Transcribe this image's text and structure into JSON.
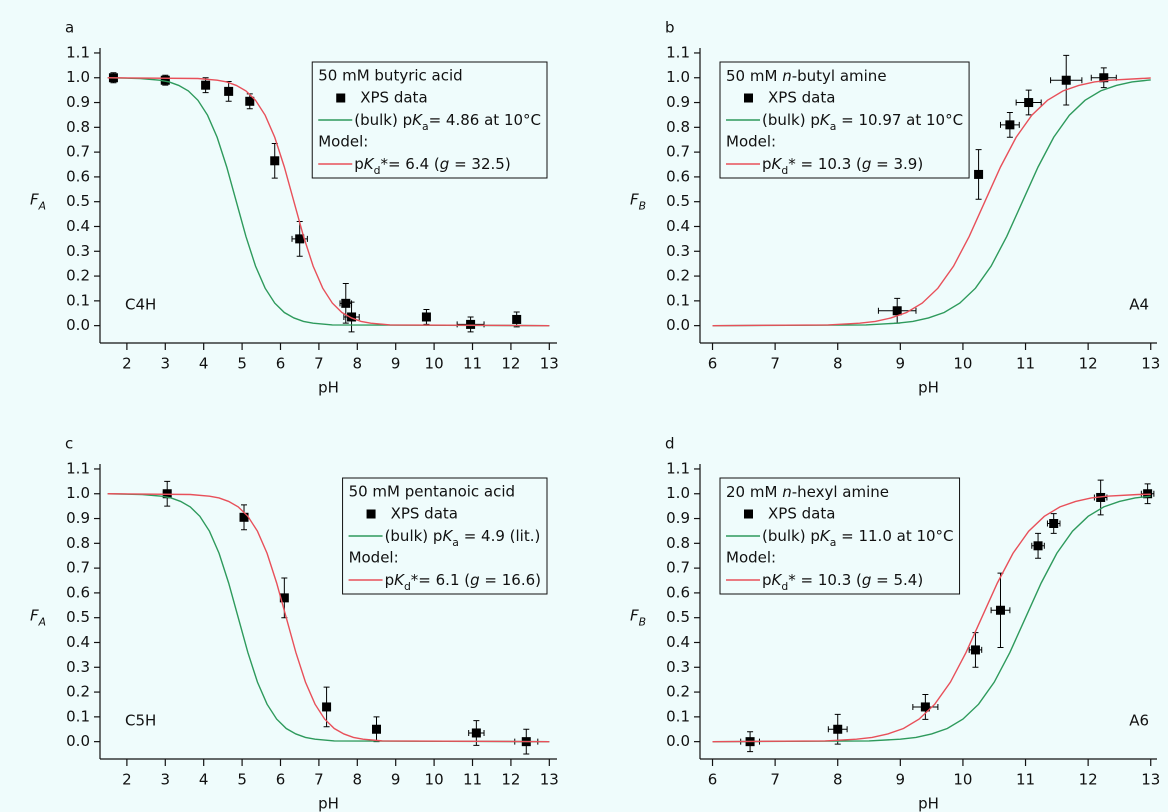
{
  "chart_data": [
    {
      "type": "line",
      "panel_label": "a",
      "annotation": "C4H",
      "x_label": "pH",
      "y_label": [
        {
          "text": "F",
          "style": "italic"
        },
        {
          "text": "A",
          "style": "italic sub"
        }
      ],
      "xlim": [
        1.3,
        13.2
      ],
      "ylim": [
        -0.07,
        1.12
      ],
      "xticks": [
        2,
        3,
        4,
        5,
        6,
        7,
        8,
        9,
        10,
        11,
        12,
        13
      ],
      "yticks": [
        {
          "value": 0,
          "label": "0.0"
        },
        0.1,
        0.2,
        0.3,
        0.4,
        0.5,
        0.6,
        0.7,
        0.8,
        0.9,
        {
          "value": 1,
          "label": "1.0"
        },
        1.1
      ],
      "legend": "upper right",
      "legend_title": "50 mM butyric acid",
      "model_label": "Model:",
      "series": [
        {
          "name": "XPS data",
          "color": "#000000",
          "marker": "square",
          "x": [
            1.65,
            3.0,
            4.05,
            4.65,
            5.2,
            5.85,
            6.5,
            7.7,
            7.85,
            9.8,
            10.95,
            12.15
          ],
          "values": [
            1.0,
            0.99,
            0.97,
            0.945,
            0.905,
            0.665,
            0.35,
            0.09,
            0.035,
            0.035,
            0.005,
            0.025
          ],
          "xerr": [
            0.05,
            0.1,
            0.05,
            0.05,
            0.05,
            0.05,
            0.2,
            0.15,
            0.2,
            0.05,
            0.35,
            0.05
          ],
          "yerr": [
            0.02,
            0.02,
            0.03,
            0.04,
            0.03,
            0.07,
            0.07,
            0.08,
            0.06,
            0.03,
            0.03,
            0.03
          ]
        },
        {
          "name": [
            {
              "text": "(bulk) p"
            },
            {
              "text": "K",
              "style": "italic"
            },
            {
              "text": "a",
              "style": "sub"
            },
            {
              "text": "= 4.86 at 10°C"
            }
          ],
          "color": "#2e9a5c",
          "x": [
            1.5,
            2.35,
            2.85,
            3.1,
            3.35,
            3.6,
            3.85,
            4.1,
            4.35,
            4.6,
            4.85,
            5.1,
            5.35,
            5.6,
            5.85,
            6.1,
            6.35,
            6.6,
            6.85,
            7.35,
            13
          ],
          "values": [
            1,
            0.997,
            0.99,
            0.983,
            0.969,
            0.947,
            0.909,
            0.849,
            0.76,
            0.64,
            0.5,
            0.36,
            0.24,
            0.151,
            0.091,
            0.053,
            0.031,
            0.017,
            0.01,
            0.003,
            0
          ]
        },
        {
          "name": [
            {
              "text": "p"
            },
            {
              "text": "K",
              "style": "italic"
            },
            {
              "text": "d",
              "style": "sub"
            },
            {
              "text": "*= 6.4 ("
            },
            {
              "text": "g",
              "style": "italic"
            },
            {
              "text": " = 32.5)"
            }
          ],
          "color": "#e8505a",
          "x": [
            1.5,
            3.85,
            4.35,
            4.6,
            4.85,
            5.1,
            5.35,
            5.6,
            5.85,
            6.1,
            6.35,
            6.6,
            6.85,
            7.1,
            7.35,
            7.6,
            7.85,
            8.1,
            8.35,
            8.85,
            13
          ],
          "values": [
            1,
            0.997,
            0.99,
            0.983,
            0.969,
            0.947,
            0.909,
            0.849,
            0.76,
            0.64,
            0.5,
            0.36,
            0.24,
            0.151,
            0.091,
            0.053,
            0.031,
            0.017,
            0.01,
            0.003,
            0
          ]
        }
      ]
    },
    {
      "type": "line",
      "panel_label": "b",
      "annotation": "A4",
      "x_label": "pH",
      "y_label": [
        {
          "text": "F",
          "style": "italic"
        },
        {
          "text": "B",
          "style": "italic sub"
        }
      ],
      "xlim": [
        5.8,
        13.1
      ],
      "ylim": [
        -0.07,
        1.12
      ],
      "xticks": [
        6,
        7,
        8,
        9,
        10,
        11,
        12,
        13
      ],
      "yticks": [
        {
          "value": 0,
          "label": "0.0"
        },
        0.1,
        0.2,
        0.3,
        0.4,
        0.5,
        0.6,
        0.7,
        0.8,
        0.9,
        {
          "value": 1,
          "label": "1.0"
        },
        1.1
      ],
      "legend": "upper left",
      "legend_title": [
        {
          "text": "50 mM "
        },
        {
          "text": "n",
          "style": "italic"
        },
        {
          "text": "-butyl amine"
        }
      ],
      "model_label": "Model:",
      "series": [
        {
          "name": "XPS data",
          "color": "#000000",
          "marker": "square",
          "x": [
            8.95,
            10.25,
            10.75,
            11.05,
            11.65,
            12.25
          ],
          "values": [
            0.06,
            0.61,
            0.81,
            0.9,
            0.99,
            1.0
          ],
          "xerr": [
            0.3,
            0.05,
            0.15,
            0.2,
            0.25,
            0.2
          ],
          "yerr": [
            0.05,
            0.1,
            0.05,
            0.05,
            0.1,
            0.04
          ]
        },
        {
          "name": [
            {
              "text": "(bulk) p"
            },
            {
              "text": "K",
              "style": "italic"
            },
            {
              "text": "a",
              "style": "sub"
            },
            {
              "text": " = 10.97 at 10°C"
            }
          ],
          "color": "#2e9a5c",
          "x": [
            6,
            8.45,
            8.95,
            9.2,
            9.45,
            9.7,
            9.95,
            10.2,
            10.45,
            10.7,
            10.95,
            11.2,
            11.45,
            11.7,
            11.95,
            12.2,
            12.45,
            12.7,
            12.95,
            13
          ],
          "values": [
            0,
            0.003,
            0.01,
            0.017,
            0.031,
            0.053,
            0.091,
            0.151,
            0.24,
            0.36,
            0.5,
            0.64,
            0.76,
            0.849,
            0.909,
            0.947,
            0.969,
            0.983,
            0.99,
            0.991
          ]
        },
        {
          "name": [
            {
              "text": "p"
            },
            {
              "text": "K",
              "style": "italic"
            },
            {
              "text": "d",
              "style": "sub"
            },
            {
              "text": "* = 10.3 ("
            },
            {
              "text": "g",
              "style": "italic"
            },
            {
              "text": " = 3.9)"
            }
          ],
          "color": "#e8505a",
          "x": [
            6,
            7.85,
            8.35,
            8.6,
            8.85,
            9.1,
            9.35,
            9.6,
            9.85,
            10.1,
            10.35,
            10.6,
            10.85,
            11.1,
            11.35,
            11.6,
            11.85,
            12.1,
            12.35,
            12.85,
            13
          ],
          "values": [
            0,
            0.003,
            0.01,
            0.017,
            0.031,
            0.053,
            0.091,
            0.151,
            0.24,
            0.36,
            0.5,
            0.64,
            0.76,
            0.849,
            0.909,
            0.947,
            0.969,
            0.983,
            0.99,
            0.997,
            0.999
          ]
        }
      ]
    },
    {
      "type": "line",
      "panel_label": "c",
      "annotation": "C5H",
      "x_label": "pH",
      "y_label": [
        {
          "text": "F",
          "style": "italic"
        },
        {
          "text": "A",
          "style": "italic sub"
        }
      ],
      "xlim": [
        1.3,
        13.2
      ],
      "ylim": [
        -0.07,
        1.12
      ],
      "xticks": [
        2,
        3,
        4,
        5,
        6,
        7,
        8,
        9,
        10,
        11,
        12,
        13
      ],
      "yticks": [
        {
          "value": 0,
          "label": "0.0"
        },
        0.1,
        0.2,
        0.3,
        0.4,
        0.5,
        0.6,
        0.7,
        0.8,
        0.9,
        {
          "value": 1,
          "label": "1.0"
        },
        1.1
      ],
      "legend": "upper right",
      "legend_title": "50 mM pentanoic acid",
      "model_label": "Model:",
      "series": [
        {
          "name": "XPS data",
          "color": "#000000",
          "marker": "square",
          "x": [
            3.05,
            5.05,
            6.1,
            7.2,
            8.5,
            11.1,
            12.4
          ],
          "values": [
            1.0,
            0.905,
            0.58,
            0.14,
            0.05,
            0.035,
            0.0
          ],
          "xerr": [
            0.1,
            0.1,
            0.05,
            0.05,
            0.05,
            0.2,
            0.3
          ],
          "yerr": [
            0.05,
            0.05,
            0.08,
            0.08,
            0.05,
            0.05,
            0.05
          ]
        },
        {
          "name": [
            {
              "text": "(bulk) p"
            },
            {
              "text": "K",
              "style": "italic"
            },
            {
              "text": "a",
              "style": "sub"
            },
            {
              "text": " = 4.9 (lit.)"
            }
          ],
          "color": "#2e9a5c",
          "x": [
            1.5,
            2.4,
            2.9,
            3.15,
            3.4,
            3.65,
            3.9,
            4.15,
            4.4,
            4.65,
            4.9,
            5.15,
            5.4,
            5.65,
            5.9,
            6.15,
            6.4,
            6.65,
            6.9,
            7.4,
            13
          ],
          "values": [
            1,
            0.997,
            0.99,
            0.983,
            0.969,
            0.947,
            0.909,
            0.849,
            0.76,
            0.64,
            0.5,
            0.36,
            0.24,
            0.151,
            0.091,
            0.053,
            0.031,
            0.017,
            0.01,
            0.003,
            0
          ]
        },
        {
          "name": [
            {
              "text": "p"
            },
            {
              "text": "K",
              "style": "italic"
            },
            {
              "text": "d",
              "style": "sub"
            },
            {
              "text": "*= 6.1 ("
            },
            {
              "text": "g",
              "style": "italic"
            },
            {
              "text": " = 16.6)"
            }
          ],
          "color": "#e8505a",
          "x": [
            1.5,
            3.65,
            4.15,
            4.4,
            4.65,
            4.9,
            5.15,
            5.4,
            5.65,
            5.9,
            6.15,
            6.4,
            6.65,
            6.9,
            7.15,
            7.4,
            7.65,
            7.9,
            8.15,
            8.65,
            13
          ],
          "values": [
            1,
            0.997,
            0.99,
            0.983,
            0.969,
            0.947,
            0.909,
            0.849,
            0.76,
            0.64,
            0.5,
            0.36,
            0.24,
            0.151,
            0.091,
            0.053,
            0.031,
            0.017,
            0.01,
            0.003,
            0
          ]
        }
      ]
    },
    {
      "type": "line",
      "panel_label": "d",
      "annotation": "A6",
      "x_label": "pH",
      "y_label": [
        {
          "text": "F",
          "style": "italic"
        },
        {
          "text": "B",
          "style": "italic sub"
        }
      ],
      "xlim": [
        5.8,
        13.1
      ],
      "ylim": [
        -0.07,
        1.12
      ],
      "xticks": [
        6,
        7,
        8,
        9,
        10,
        11,
        12,
        13
      ],
      "yticks": [
        {
          "value": 0,
          "label": "0.0"
        },
        0.1,
        0.2,
        0.3,
        0.4,
        0.5,
        0.6,
        0.7,
        0.8,
        0.9,
        {
          "value": 1,
          "label": "1.0"
        },
        1.1
      ],
      "legend": "upper left",
      "legend_title": [
        {
          "text": "20 mM "
        },
        {
          "text": "n",
          "style": "italic"
        },
        {
          "text": "-hexyl amine"
        }
      ],
      "model_label": "Model:",
      "series": [
        {
          "name": "XPS data",
          "color": "#000000",
          "marker": "square",
          "x": [
            6.6,
            8.0,
            9.4,
            10.2,
            10.6,
            11.2,
            11.45,
            12.2,
            12.95
          ],
          "values": [
            0.0,
            0.05,
            0.14,
            0.37,
            0.53,
            0.79,
            0.88,
            0.985,
            1.0
          ],
          "xerr": [
            0.15,
            0.15,
            0.2,
            0.1,
            0.15,
            0.1,
            0.1,
            0.1,
            0.1
          ],
          "yerr": [
            0.04,
            0.06,
            0.05,
            0.07,
            0.15,
            0.05,
            0.04,
            0.07,
            0.04
          ]
        },
        {
          "name": [
            {
              "text": "(bulk) p"
            },
            {
              "text": "K",
              "style": "italic"
            },
            {
              "text": "a",
              "style": "sub"
            },
            {
              "text": " = 11.0 at 10°C"
            }
          ],
          "color": "#2e9a5c",
          "x": [
            6,
            8.5,
            9,
            9.25,
            9.5,
            9.75,
            10,
            10.25,
            10.5,
            10.75,
            11,
            11.25,
            11.5,
            11.75,
            12,
            12.25,
            12.5,
            12.75,
            13
          ],
          "values": [
            0,
            0.003,
            0.01,
            0.017,
            0.031,
            0.053,
            0.091,
            0.151,
            0.24,
            0.36,
            0.5,
            0.64,
            0.76,
            0.849,
            0.909,
            0.947,
            0.969,
            0.983,
            0.99
          ]
        },
        {
          "name": [
            {
              "text": "p"
            },
            {
              "text": "K",
              "style": "italic"
            },
            {
              "text": "d",
              "style": "sub"
            },
            {
              "text": "* = 10.3 ("
            },
            {
              "text": "g",
              "style": "italic"
            },
            {
              "text": " = 5.4)"
            }
          ],
          "color": "#e8505a",
          "x": [
            6,
            7.8,
            8.3,
            8.55,
            8.8,
            9.05,
            9.3,
            9.55,
            9.8,
            10.05,
            10.3,
            10.55,
            10.8,
            11.05,
            11.3,
            11.55,
            11.8,
            12.05,
            12.3,
            12.8,
            13
          ],
          "values": [
            0,
            0.003,
            0.01,
            0.017,
            0.031,
            0.053,
            0.091,
            0.151,
            0.24,
            0.36,
            0.5,
            0.64,
            0.76,
            0.849,
            0.909,
            0.947,
            0.969,
            0.983,
            0.99,
            0.997,
            0.998
          ]
        }
      ]
    }
  ]
}
